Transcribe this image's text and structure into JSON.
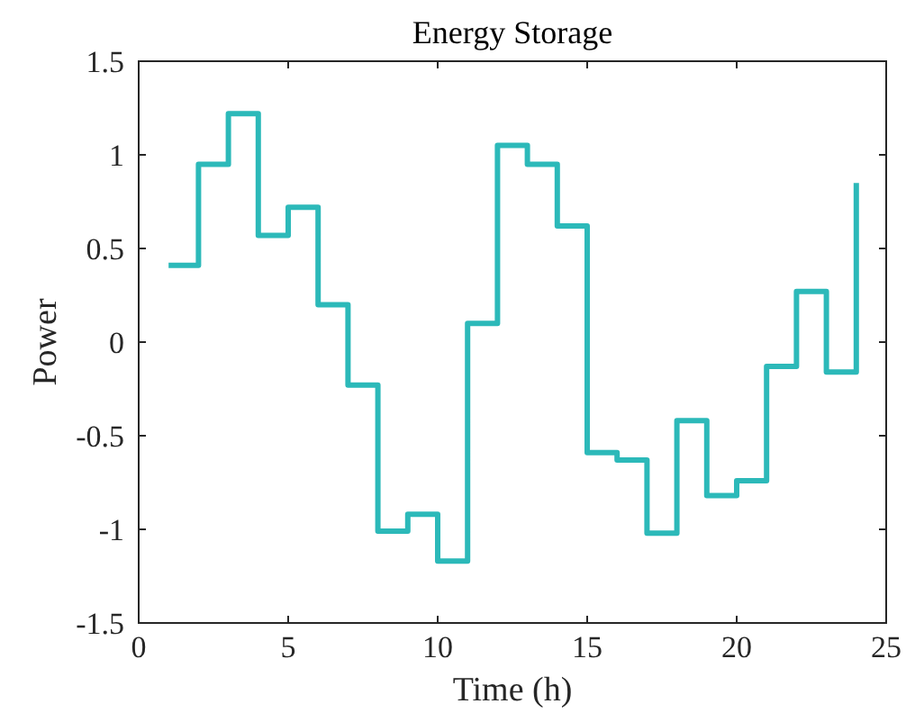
{
  "chart_data": {
    "type": "step",
    "title": "Energy Storage",
    "xlabel": "Time (h)",
    "ylabel": "Power",
    "x": [
      1,
      2,
      3,
      4,
      5,
      6,
      7,
      8,
      9,
      10,
      11,
      12,
      13,
      14,
      15,
      16,
      17,
      18,
      19,
      20,
      21,
      22,
      23,
      24
    ],
    "series": [
      {
        "color": "#2cb9b9",
        "values": [
          0.41,
          0.95,
          1.22,
          0.57,
          0.72,
          0.2,
          -0.23,
          -1.01,
          -0.92,
          -1.17,
          0.1,
          1.05,
          0.95,
          0.62,
          -0.59,
          -0.63,
          -1.02,
          -0.42,
          -0.82,
          -0.74,
          -0.13,
          0.27,
          -0.16,
          0.85
        ]
      }
    ],
    "xlim": [
      0,
      25
    ],
    "xticks": [
      0,
      5,
      10,
      15,
      20,
      25
    ],
    "ylim": [
      -1.5,
      1.5
    ],
    "yticks": [
      -1.5,
      -1,
      -0.5,
      0,
      0.5,
      1,
      1.5
    ]
  }
}
